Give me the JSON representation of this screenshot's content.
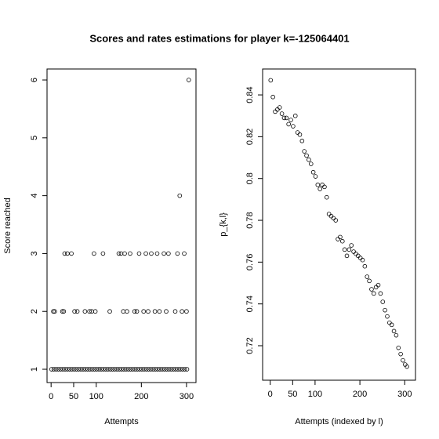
{
  "title": "Scores and rates estimations for player k=-125064401",
  "chart_data": [
    {
      "type": "scatter",
      "x_label": "Attempts",
      "y_label": "Score reached",
      "color": "#000000",
      "x": [
        1,
        6,
        11,
        16,
        21,
        26,
        31,
        36,
        41,
        46,
        51,
        56,
        61,
        66,
        71,
        76,
        81,
        86,
        91,
        96,
        101,
        106,
        111,
        116,
        121,
        126,
        131,
        136,
        141,
        146,
        151,
        156,
        161,
        166,
        171,
        176,
        181,
        186,
        191,
        196,
        201,
        206,
        211,
        216,
        221,
        226,
        231,
        236,
        241,
        246,
        251,
        256,
        261,
        266,
        271,
        276,
        281,
        286,
        291,
        296,
        301,
        5,
        8,
        25,
        28,
        30,
        36,
        45,
        52,
        58,
        75,
        85,
        90,
        95,
        98,
        115,
        130,
        150,
        155,
        160,
        163,
        168,
        175,
        185,
        190,
        195,
        205,
        210,
        215,
        222,
        230,
        235,
        240,
        250,
        255,
        260,
        275,
        280,
        285,
        290,
        295,
        300,
        305
      ],
      "values": [
        1,
        1,
        1,
        1,
        1,
        1,
        1,
        1,
        1,
        1,
        1,
        1,
        1,
        1,
        1,
        1,
        1,
        1,
        1,
        1,
        1,
        1,
        1,
        1,
        1,
        1,
        1,
        1,
        1,
        1,
        1,
        1,
        1,
        1,
        1,
        1,
        1,
        1,
        1,
        1,
        1,
        1,
        1,
        1,
        1,
        1,
        1,
        1,
        1,
        1,
        1,
        1,
        1,
        1,
        1,
        1,
        1,
        1,
        1,
        1,
        1,
        2,
        2,
        2,
        2,
        3,
        3,
        3,
        2,
        2,
        2,
        2,
        2,
        3,
        2,
        3,
        2,
        3,
        3,
        2,
        3,
        2,
        3,
        2,
        2,
        3,
        2,
        3,
        2,
        3,
        2,
        3,
        2,
        3,
        2,
        3,
        2,
        3,
        4,
        2,
        3,
        2,
        6
      ],
      "xlim": [
        -9,
        321
      ],
      "xticks": [
        0,
        50,
        100,
        200,
        300
      ],
      "ylim": [
        0.77,
        6.19
      ],
      "yticks": [
        1,
        2,
        3,
        4,
        5,
        6
      ]
    },
    {
      "type": "scatter",
      "x_label": "Attempts (indexed by l)",
      "y_label": "p_{k,l}",
      "color": "#000000",
      "x": [
        1,
        6,
        11,
        16,
        21,
        26,
        31,
        36,
        41,
        46,
        51,
        56,
        61,
        66,
        71,
        76,
        81,
        86,
        91,
        96,
        101,
        106,
        111,
        116,
        121,
        126,
        131,
        136,
        141,
        146,
        151,
        156,
        161,
        166,
        171,
        176,
        181,
        186,
        191,
        196,
        201,
        206,
        211,
        216,
        221,
        226,
        231,
        236,
        241,
        246,
        251,
        256,
        261,
        266,
        271,
        276,
        281,
        286,
        291,
        296,
        301,
        305
      ],
      "values": [
        0.847,
        0.839,
        0.832,
        0.833,
        0.834,
        0.831,
        0.829,
        0.829,
        0.826,
        0.828,
        0.825,
        0.83,
        0.822,
        0.821,
        0.818,
        0.813,
        0.811,
        0.809,
        0.807,
        0.803,
        0.801,
        0.797,
        0.795,
        0.797,
        0.796,
        0.791,
        0.783,
        0.782,
        0.781,
        0.78,
        0.771,
        0.772,
        0.77,
        0.766,
        0.763,
        0.766,
        0.768,
        0.765,
        0.764,
        0.763,
        0.762,
        0.761,
        0.758,
        0.753,
        0.751,
        0.747,
        0.745,
        0.748,
        0.749,
        0.745,
        0.741,
        0.737,
        0.734,
        0.731,
        0.73,
        0.727,
        0.725,
        0.719,
        0.716,
        0.713,
        0.711,
        0.71
      ],
      "xlim": [
        -17,
        324
      ],
      "xticks": [
        0,
        50,
        100,
        200,
        300
      ],
      "ylim": [
        0.7035,
        0.8524
      ],
      "yticks": [
        0.72,
        0.74,
        0.76,
        0.78,
        0.8,
        0.82,
        0.84
      ]
    }
  ]
}
